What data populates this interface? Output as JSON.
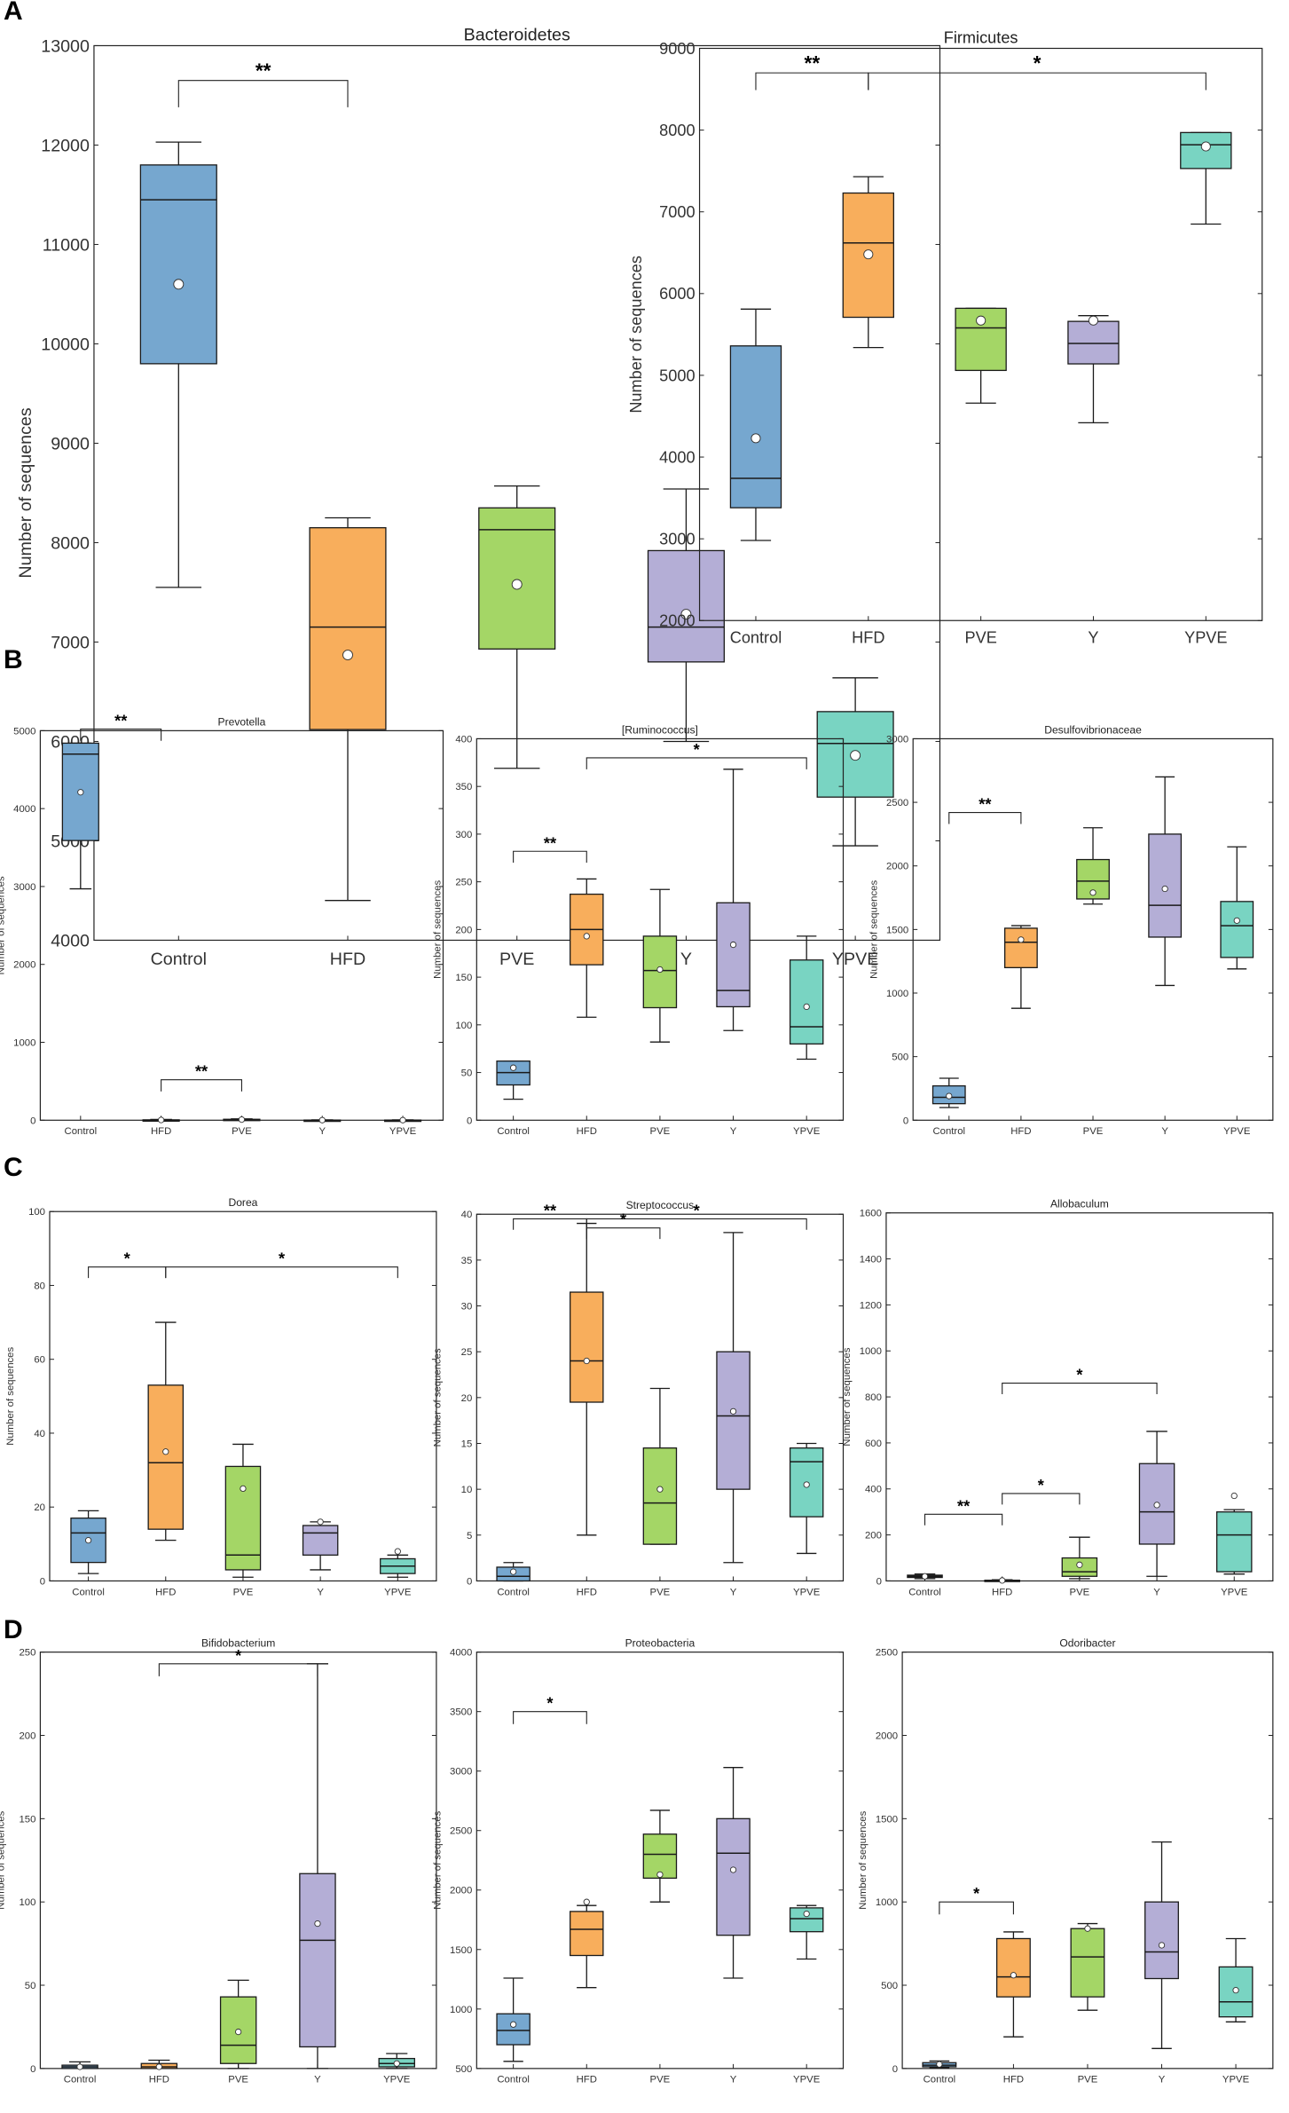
{
  "figure": {
    "groups": [
      "Control",
      "HFD",
      "PVE",
      "Y",
      "YPVE"
    ],
    "colors": {
      "Control": "#76a7cf",
      "HFD": "#f8ae5c",
      "PVE": "#a4d666",
      "Y": "#b4aed6",
      "YPVE": "#79d4c2",
      "line": "#1a1a1a"
    },
    "panels": [
      "A",
      "B",
      "C",
      "D"
    ]
  },
  "chart_data": [
    {
      "id": "A1",
      "panel": "A",
      "type": "box",
      "title": "Bacteroidetes",
      "ylabel": "Number of sequences",
      "ylim": [
        4000,
        13000
      ],
      "yticks": [
        4000,
        5000,
        6000,
        7000,
        8000,
        9000,
        10000,
        11000,
        12000,
        13000
      ],
      "categories": [
        "Control",
        "HFD",
        "PVE",
        "Y",
        "YPVE"
      ],
      "boxes": [
        {
          "group": "Control",
          "min": 7550,
          "q1": 9800,
          "median": 11450,
          "q3": 11800,
          "max": 12030,
          "mean": 10600
        },
        {
          "group": "HFD",
          "min": 4400,
          "q1": 6120,
          "median": 7150,
          "q3": 8150,
          "max": 8250,
          "mean": 6870
        },
        {
          "group": "PVE",
          "min": 5730,
          "q1": 6930,
          "median": 8130,
          "q3": 8350,
          "max": 8570,
          "mean": 7580
        },
        {
          "group": "Y",
          "min": 6000,
          "q1": 6800,
          "median": 7150,
          "q3": 7920,
          "max": 8540,
          "mean": 7280
        },
        {
          "group": "YPVE",
          "min": 4950,
          "q1": 5440,
          "median": 5980,
          "q3": 6300,
          "max": 6640,
          "mean": 5860
        }
      ],
      "annotations": [
        {
          "from": "Control",
          "to": "HFD",
          "y": 12650,
          "label": "**"
        }
      ]
    },
    {
      "id": "A2",
      "panel": "A",
      "type": "box",
      "title": "Firmicutes",
      "ylabel": "Number of sequences",
      "ylim": [
        2000,
        9000
      ],
      "yticks": [
        2000,
        3000,
        4000,
        5000,
        6000,
        7000,
        8000,
        9000
      ],
      "categories": [
        "Control",
        "HFD",
        "PVE",
        "Y",
        "YPVE"
      ],
      "boxes": [
        {
          "group": "Control",
          "min": 2980,
          "q1": 3380,
          "median": 3740,
          "q3": 5360,
          "max": 5810,
          "mean": 4230
        },
        {
          "group": "HFD",
          "min": 5340,
          "q1": 5710,
          "median": 6620,
          "q3": 7230,
          "max": 7430,
          "mean": 6480
        },
        {
          "group": "PVE",
          "min": 4660,
          "q1": 5060,
          "median": 5580,
          "q3": 5820,
          "max": 5820,
          "mean": 5670
        },
        {
          "group": "Y",
          "min": 4420,
          "q1": 5140,
          "median": 5390,
          "q3": 5660,
          "max": 5730,
          "mean": 5670
        },
        {
          "group": "YPVE",
          "min": 6850,
          "q1": 7530,
          "median": 7820,
          "q3": 7970,
          "max": 7970,
          "mean": 7800
        }
      ],
      "annotations": [
        {
          "from": "Control",
          "to": "HFD",
          "y": 8700,
          "label": "**"
        },
        {
          "from": "HFD",
          "to": "YPVE",
          "y": 8700,
          "label": "*"
        }
      ]
    },
    {
      "id": "B1",
      "panel": "B",
      "type": "box",
      "title": "Prevotella",
      "ylabel": "Number of sequences",
      "ylim": [
        0,
        5000
      ],
      "yticks": [
        0,
        1000,
        2000,
        3000,
        4000,
        5000
      ],
      "categories": [
        "Control",
        "HFD",
        "PVE",
        "Y",
        "YPVE"
      ],
      "boxes": [
        {
          "group": "Control",
          "min": 2970,
          "q1": 3590,
          "median": 4700,
          "q3": 4840,
          "max": 4840,
          "mean": 4210
        },
        {
          "group": "HFD",
          "min": 0,
          "q1": 0,
          "median": 0,
          "q3": 5,
          "max": 10,
          "mean": 3
        },
        {
          "group": "PVE",
          "min": 0,
          "q1": 3,
          "median": 6,
          "q3": 12,
          "max": 18,
          "mean": 8
        },
        {
          "group": "Y",
          "min": 0,
          "q1": 0,
          "median": 0,
          "q3": 2,
          "max": 4,
          "mean": 1
        },
        {
          "group": "YPVE",
          "min": 0,
          "q1": 0,
          "median": 0,
          "q3": 2,
          "max": 4,
          "mean": 1
        }
      ],
      "annotations": [
        {
          "from": "Control",
          "to": "HFD",
          "y": 5020,
          "label": "**"
        },
        {
          "from": "HFD",
          "to": "PVE",
          "y": 520,
          "label": "**"
        }
      ]
    },
    {
      "id": "B2",
      "panel": "B",
      "type": "box",
      "title": "[Ruminococcus]",
      "ylabel": "Number of sequences",
      "ylim": [
        0,
        400
      ],
      "yticks": [
        0,
        50,
        100,
        150,
        200,
        250,
        300,
        350,
        400
      ],
      "categories": [
        "Control",
        "HFD",
        "PVE",
        "Y",
        "YPVE"
      ],
      "boxes": [
        {
          "group": "Control",
          "min": 22,
          "q1": 37,
          "median": 50,
          "q3": 62,
          "max": 62,
          "mean": 55
        },
        {
          "group": "HFD",
          "min": 108,
          "q1": 163,
          "median": 200,
          "q3": 237,
          "max": 253,
          "mean": 193
        },
        {
          "group": "PVE",
          "min": 82,
          "q1": 118,
          "median": 157,
          "q3": 193,
          "max": 242,
          "mean": 158
        },
        {
          "group": "Y",
          "min": 94,
          "q1": 119,
          "median": 136,
          "q3": 228,
          "max": 368,
          "mean": 184
        },
        {
          "group": "YPVE",
          "min": 64,
          "q1": 80,
          "median": 98,
          "q3": 168,
          "max": 193,
          "mean": 119
        }
      ],
      "annotations": [
        {
          "from": "Control",
          "to": "HFD",
          "y": 282,
          "label": "**"
        },
        {
          "from": "HFD",
          "to": "YPVE",
          "y": 380,
          "label": "*"
        }
      ]
    },
    {
      "id": "B3",
      "panel": "B",
      "type": "box",
      "title": "Desulfovibrionaceae",
      "ylabel": "Number of sequences",
      "ylim": [
        0,
        3000
      ],
      "yticks": [
        0,
        500,
        1000,
        1500,
        2000,
        2500,
        3000
      ],
      "categories": [
        "Control",
        "HFD",
        "PVE",
        "Y",
        "YPVE"
      ],
      "boxes": [
        {
          "group": "Control",
          "min": 100,
          "q1": 130,
          "median": 180,
          "q3": 270,
          "max": 330,
          "mean": 190
        },
        {
          "group": "HFD",
          "min": 880,
          "q1": 1200,
          "median": 1400,
          "q3": 1510,
          "max": 1530,
          "mean": 1420
        },
        {
          "group": "PVE",
          "min": 1700,
          "q1": 1740,
          "median": 1880,
          "q3": 2050,
          "max": 2300,
          "mean": 1790
        },
        {
          "group": "Y",
          "min": 1060,
          "q1": 1440,
          "median": 1690,
          "q3": 2250,
          "max": 2700,
          "mean": 1820
        },
        {
          "group": "YPVE",
          "min": 1190,
          "q1": 1280,
          "median": 1530,
          "q3": 1720,
          "max": 2150,
          "mean": 1570
        }
      ],
      "annotations": [
        {
          "from": "Control",
          "to": "HFD",
          "y": 2420,
          "label": "**"
        }
      ]
    },
    {
      "id": "C1",
      "panel": "C",
      "type": "box",
      "title": "Dorea",
      "ylabel": "Number of sequences",
      "ylim": [
        0,
        100
      ],
      "yticks": [
        0,
        20,
        40,
        60,
        80,
        100
      ],
      "categories": [
        "Control",
        "HFD",
        "PVE",
        "Y",
        "YPVE"
      ],
      "boxes": [
        {
          "group": "Control",
          "min": 2,
          "q1": 5,
          "median": 13,
          "q3": 17,
          "max": 19,
          "mean": 11
        },
        {
          "group": "HFD",
          "min": 11,
          "q1": 14,
          "median": 32,
          "q3": 53,
          "max": 70,
          "mean": 35
        },
        {
          "group": "PVE",
          "min": 1,
          "q1": 3,
          "median": 7,
          "q3": 31,
          "max": 37,
          "mean": 25
        },
        {
          "group": "Y",
          "min": 3,
          "q1": 7,
          "median": 13,
          "q3": 15,
          "max": 16,
          "mean": 16
        },
        {
          "group": "YPVE",
          "min": 1,
          "q1": 2,
          "median": 4,
          "q3": 6,
          "max": 7,
          "mean": 8
        }
      ],
      "annotations": [
        {
          "from": "Control",
          "to": "HFD",
          "y": 85,
          "label": "*"
        },
        {
          "from": "HFD",
          "to": "YPVE",
          "y": 85,
          "label": "*"
        }
      ]
    },
    {
      "id": "C2",
      "panel": "C",
      "type": "box",
      "title": "Streptococcus",
      "ylabel": "Number of sequences",
      "ylim": [
        0,
        40
      ],
      "yticks": [
        0,
        5,
        10,
        15,
        20,
        25,
        30,
        35,
        40
      ],
      "categories": [
        "Control",
        "HFD",
        "PVE",
        "Y",
        "YPVE"
      ],
      "boxes": [
        {
          "group": "Control",
          "min": 0,
          "q1": 0,
          "median": 0.5,
          "q3": 1.5,
          "max": 2,
          "mean": 1
        },
        {
          "group": "HFD",
          "min": 5,
          "q1": 19.5,
          "median": 24,
          "q3": 31.5,
          "max": 39,
          "mean": 24
        },
        {
          "group": "PVE",
          "min": 4,
          "q1": 4,
          "median": 8.5,
          "q3": 14.5,
          "max": 21,
          "mean": 10
        },
        {
          "group": "Y",
          "min": 2,
          "q1": 10,
          "median": 18,
          "q3": 25,
          "max": 38,
          "mean": 18.5
        },
        {
          "group": "YPVE",
          "min": 3,
          "q1": 7,
          "median": 13,
          "q3": 14.5,
          "max": 15,
          "mean": 10.5
        }
      ],
      "annotations": [
        {
          "from": "Control",
          "to": "HFD",
          "y": 39.5,
          "label": "**"
        },
        {
          "from": "HFD",
          "to": "PVE",
          "y": 38.5,
          "label": "*"
        },
        {
          "from": "HFD",
          "to": "YPVE",
          "y": 39.5,
          "label": "*"
        }
      ]
    },
    {
      "id": "C3",
      "panel": "C",
      "type": "box",
      "title": "Allobaculum",
      "ylabel": "Number of sequences",
      "ylim": [
        0,
        1600
      ],
      "yticks": [
        0,
        200,
        400,
        600,
        800,
        1000,
        1200,
        1400,
        1600
      ],
      "ytick_labels": [
        "0",
        "200",
        "400",
        "600",
        "800",
        "1000",
        "1200",
        "1400",
        "1600"
      ],
      "categories": [
        "Control",
        "HFD",
        "PVE",
        "Y",
        "YPVE"
      ],
      "boxes": [
        {
          "group": "Control",
          "min": 10,
          "q1": 15,
          "median": 20,
          "q3": 25,
          "max": 30,
          "mean": 20
        },
        {
          "group": "HFD",
          "min": 0,
          "q1": 0,
          "median": 1,
          "q3": 3,
          "max": 5,
          "mean": 2
        },
        {
          "group": "PVE",
          "min": 10,
          "q1": 20,
          "median": 40,
          "q3": 100,
          "max": 190,
          "mean": 70
        },
        {
          "group": "Y",
          "min": 20,
          "q1": 160,
          "median": 300,
          "q3": 510,
          "max": 650,
          "mean": 330
        },
        {
          "group": "YPVE",
          "min": 30,
          "q1": 40,
          "median": 200,
          "q3": 300,
          "max": 310,
          "mean": 370
        }
      ],
      "annotations": [
        {
          "from": "Control",
          "to": "HFD",
          "y": 290,
          "label": "**"
        },
        {
          "from": "HFD",
          "to": "PVE",
          "y": 380,
          "label": "*"
        },
        {
          "from": "HFD",
          "to": "Y",
          "y": 860,
          "label": "*"
        }
      ]
    },
    {
      "id": "D1",
      "panel": "D",
      "type": "box",
      "title": "Bifidobacterium",
      "ylabel": "Number of sequences",
      "ylim": [
        0,
        250
      ],
      "yticks": [
        0,
        50,
        100,
        150,
        200,
        250
      ],
      "categories": [
        "Control",
        "HFD",
        "PVE",
        "Y",
        "YPVE"
      ],
      "boxes": [
        {
          "group": "Control",
          "min": 0,
          "q1": 0,
          "median": 1,
          "q3": 2,
          "max": 4,
          "mean": 1
        },
        {
          "group": "HFD",
          "min": 0,
          "q1": 0,
          "median": 1,
          "q3": 3,
          "max": 5,
          "mean": 1
        },
        {
          "group": "PVE",
          "min": 0,
          "q1": 3,
          "median": 14,
          "q3": 43,
          "max": 53,
          "mean": 22
        },
        {
          "group": "Y",
          "min": 0,
          "q1": 13,
          "median": 77,
          "q3": 117,
          "max": 243,
          "mean": 87
        },
        {
          "group": "YPVE",
          "min": 0,
          "q1": 1,
          "median": 3,
          "q3": 6,
          "max": 9,
          "mean": 3
        }
      ],
      "annotations": [
        {
          "from": "HFD",
          "to": "Y",
          "y": 243,
          "label": "*"
        }
      ]
    },
    {
      "id": "D2",
      "panel": "D",
      "type": "box",
      "title": "Proteobacteria",
      "ylabel": "Number of sequences",
      "ylim": [
        500,
        4000
      ],
      "yticks": [
        500,
        1000,
        1500,
        2000,
        2500,
        3000,
        3500,
        4000
      ],
      "categories": [
        "Control",
        "HFD",
        "PVE",
        "Y",
        "YPVE"
      ],
      "boxes": [
        {
          "group": "Control",
          "min": 560,
          "q1": 700,
          "median": 820,
          "q3": 960,
          "max": 1260,
          "mean": 870
        },
        {
          "group": "HFD",
          "min": 1180,
          "q1": 1450,
          "median": 1670,
          "q3": 1820,
          "max": 1870,
          "mean": 1900
        },
        {
          "group": "PVE",
          "min": 1900,
          "q1": 2100,
          "median": 2300,
          "q3": 2470,
          "max": 2670,
          "mean": 2130
        },
        {
          "group": "Y",
          "min": 1260,
          "q1": 1620,
          "median": 2310,
          "q3": 2600,
          "max": 3030,
          "mean": 2170
        },
        {
          "group": "YPVE",
          "min": 1420,
          "q1": 1650,
          "median": 1760,
          "q3": 1850,
          "max": 1870,
          "mean": 1800
        }
      ],
      "annotations": [
        {
          "from": "Control",
          "to": "HFD",
          "y": 3500,
          "label": "*"
        }
      ]
    },
    {
      "id": "D3",
      "panel": "D",
      "type": "box",
      "title": "Odoribacter",
      "ylabel": "Number of sequences",
      "ylim": [
        0,
        2500
      ],
      "yticks": [
        0,
        500,
        1000,
        1500,
        2000,
        2500
      ],
      "categories": [
        "Control",
        "HFD",
        "PVE",
        "Y",
        "YPVE"
      ],
      "boxes": [
        {
          "group": "Control",
          "min": 5,
          "q1": 10,
          "median": 20,
          "q3": 35,
          "max": 45,
          "mean": 25
        },
        {
          "group": "HFD",
          "min": 190,
          "q1": 430,
          "median": 550,
          "q3": 780,
          "max": 820,
          "mean": 560
        },
        {
          "group": "PVE",
          "min": 350,
          "q1": 430,
          "median": 670,
          "q3": 840,
          "max": 870,
          "mean": 840
        },
        {
          "group": "Y",
          "min": 120,
          "q1": 540,
          "median": 700,
          "q3": 1000,
          "max": 1360,
          "mean": 740
        },
        {
          "group": "YPVE",
          "min": 280,
          "q1": 310,
          "median": 400,
          "q3": 610,
          "max": 780,
          "mean": 470
        }
      ],
      "annotations": [
        {
          "from": "Control",
          "to": "HFD",
          "y": 1000,
          "label": "*"
        }
      ]
    }
  ]
}
